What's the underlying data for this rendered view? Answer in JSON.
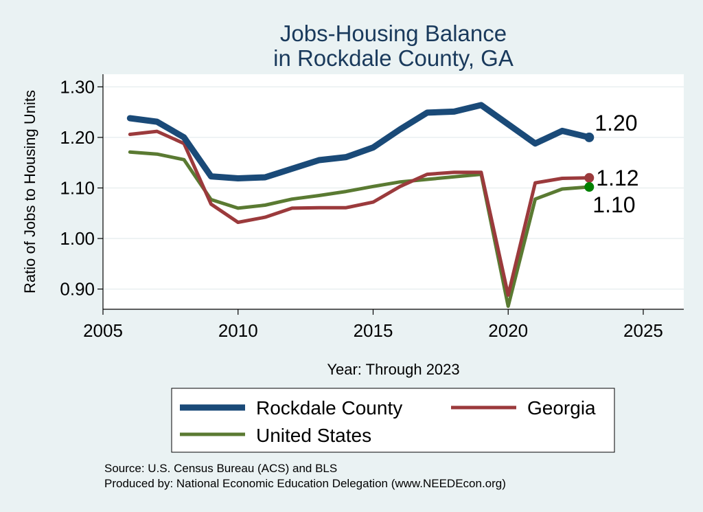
{
  "chart_data": {
    "type": "line",
    "title": [
      "Jobs-Housing Balance",
      "in Rockdale County, GA"
    ],
    "xlabel": "Year: Through 2023",
    "ylabel": "Ratio of Jobs to Housing Units",
    "xlim": [
      2005,
      2026.5
    ],
    "ylim": [
      0.86,
      1.325
    ],
    "x_ticks": [
      2005,
      2010,
      2015,
      2020,
      2025
    ],
    "y_ticks": [
      0.9,
      1.0,
      1.1,
      1.2,
      1.3
    ],
    "y_tick_labels": [
      "0.90",
      "1.00",
      "1.10",
      "1.20",
      "1.30"
    ],
    "grid": true,
    "x": [
      2006,
      2007,
      2008,
      2009,
      2010,
      2011,
      2012,
      2013,
      2014,
      2015,
      2016,
      2017,
      2018,
      2019,
      2020,
      2021,
      2022,
      2023
    ],
    "series": [
      {
        "name": "Rockdale County",
        "color": "#1a4a78",
        "width": 9,
        "values": [
          1.238,
          1.231,
          1.2,
          1.123,
          1.119,
          1.121,
          1.138,
          1.155,
          1.161,
          1.18,
          1.216,
          1.249,
          1.251,
          1.264,
          1.226,
          1.188,
          1.213,
          1.2
        ],
        "end_label": "1.20",
        "end_marker_color": "#1a4a78"
      },
      {
        "name": "Georgia",
        "color": "#9b3a3c",
        "width": 5,
        "values": [
          1.206,
          1.212,
          1.188,
          1.068,
          1.032,
          1.042,
          1.06,
          1.061,
          1.061,
          1.072,
          1.103,
          1.127,
          1.131,
          1.131,
          0.888,
          1.11,
          1.119,
          1.12
        ],
        "end_label": "1.12",
        "end_marker_color": "#9b3a3c"
      },
      {
        "name": "United States",
        "color": "#5a7a32",
        "width": 5,
        "values": [
          1.171,
          1.167,
          1.156,
          1.077,
          1.06,
          1.066,
          1.078,
          1.085,
          1.093,
          1.103,
          1.112,
          1.117,
          1.122,
          1.127,
          0.866,
          1.078,
          1.098,
          1.102
        ],
        "end_label": "1.10",
        "end_marker_color": "#008000"
      }
    ],
    "legend": {
      "placement": "bottom",
      "items": [
        "Rockdale County",
        "Georgia",
        "United States"
      ]
    },
    "source_lines": [
      "Source: U.S. Census Bureau (ACS) and BLS",
      "Produced by: National Economic Education Delegation (www.NEEDEcon.org)"
    ]
  }
}
